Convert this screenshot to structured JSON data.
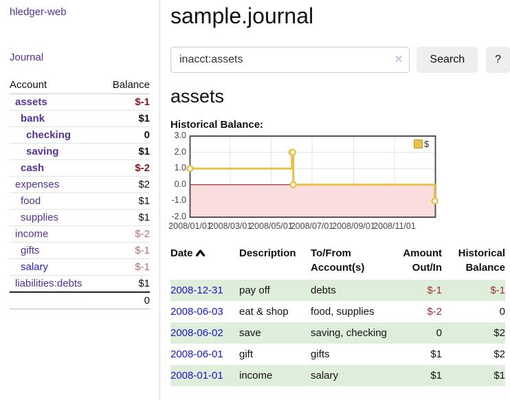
{
  "sidebar": {
    "brand": "hledger-web",
    "journal_label": "Journal",
    "accounts_table": {
      "account_header": "Account",
      "balance_header": "Balance",
      "rows": [
        {
          "name": "assets",
          "depth": 1,
          "bold": true,
          "link": "purple",
          "balance": "$-1",
          "tone": "neg-strong"
        },
        {
          "name": "bank",
          "depth": 2,
          "bold": true,
          "link": "purple",
          "balance": "$1",
          "tone": "normal"
        },
        {
          "name": "checking",
          "depth": 3,
          "bold": true,
          "link": "purple",
          "balance": "0",
          "tone": "normal"
        },
        {
          "name": "saving",
          "depth": 3,
          "bold": true,
          "link": "purple",
          "balance": "$1",
          "tone": "normal"
        },
        {
          "name": "cash",
          "depth": 2,
          "bold": true,
          "link": "purple",
          "balance": "$-2",
          "tone": "neg-strong"
        },
        {
          "name": "expenses",
          "depth": 1,
          "bold": false,
          "link": "purple",
          "balance": "$2",
          "tone": "normal"
        },
        {
          "name": "food",
          "depth": 2,
          "bold": false,
          "link": "purple",
          "balance": "$1",
          "tone": "normal"
        },
        {
          "name": "supplies",
          "depth": 2,
          "bold": false,
          "link": "purple",
          "balance": "$1",
          "tone": "normal"
        },
        {
          "name": "income",
          "depth": 1,
          "bold": false,
          "link": "purple",
          "balance": "$-2",
          "tone": "neg-soft"
        },
        {
          "name": "gifts",
          "depth": 2,
          "bold": false,
          "link": "purple",
          "balance": "$-1",
          "tone": "neg-soft"
        },
        {
          "name": "salary",
          "depth": 2,
          "bold": false,
          "link": "blue",
          "balance": "$-1",
          "tone": "neg-soft"
        },
        {
          "name": "liabilities:debts",
          "depth": 1,
          "bold": false,
          "link": "purple",
          "balance": "$1",
          "tone": "normal"
        }
      ],
      "total": "0"
    }
  },
  "header": {
    "title": "sample.journal"
  },
  "search": {
    "value": "inacct:assets",
    "placeholder": "",
    "button_label": "Search",
    "help_label": "?"
  },
  "icons": {
    "clear_search": "✕",
    "sort_date": "chevron-up",
    "legend_swatch": "gold-square"
  },
  "account_page": {
    "heading": "assets"
  },
  "chart_data": {
    "type": "line",
    "title": "Historical Balance:",
    "step": true,
    "series": [
      {
        "name": "$",
        "color": "#e9c04c",
        "points": [
          [
            "2008-01-01",
            1
          ],
          [
            "2008-06-01",
            2
          ],
          [
            "2008-06-02",
            2
          ],
          [
            "2008-06-03",
            0
          ],
          [
            "2008-12-31",
            -1
          ]
        ]
      }
    ],
    "xlim": [
      "2008-01-01",
      "2009-01-01"
    ],
    "ylim": [
      -2,
      3
    ],
    "yticks": [
      3.0,
      2.0,
      1.0,
      0.0,
      -1.0,
      -2.0
    ],
    "xticks": [
      {
        "date": "2008-01-01",
        "label": "2008/01/01"
      },
      {
        "date": "2008-03-01",
        "label": "2008/03/01"
      },
      {
        "date": "2008-05-01",
        "label": "2008/05/01"
      },
      {
        "date": "2008-07-01",
        "label": "2008/07/01"
      },
      {
        "date": "2008-09-01",
        "label": "2008/09/01"
      },
      {
        "date": "2008-11-01",
        "label": "2008/11/01"
      }
    ],
    "legend_position": "top-right",
    "grid": true,
    "grid_color": "#e3e3e3",
    "border_color": "#545454",
    "zero_line_color": "#8b0000",
    "negative_region_fill": "#fbdddd",
    "marker_fill": "#ffffff"
  },
  "register": {
    "headers": [
      "Date",
      "Description",
      "To/From Account(s)",
      "Amount Out/In",
      "Historical Balance"
    ],
    "rows": [
      {
        "date": "2008-12-31",
        "description": "pay off",
        "accounts": "debts",
        "amount": "$-1",
        "amount_negative": true,
        "balance": "$-1",
        "balance_negative": true,
        "shaded": true
      },
      {
        "date": "2008-06-03",
        "description": "eat & shop",
        "accounts": "food, supplies",
        "amount": "$-2",
        "amount_negative": true,
        "balance": "0",
        "balance_negative": false,
        "shaded": false
      },
      {
        "date": "2008-06-02",
        "description": "save",
        "accounts": "saving, checking",
        "amount": "0",
        "amount_negative": false,
        "balance": "$2",
        "balance_negative": false,
        "shaded": true
      },
      {
        "date": "2008-06-01",
        "description": "gift",
        "accounts": "gifts",
        "amount": "$1",
        "amount_negative": false,
        "balance": "$2",
        "balance_negative": false,
        "shaded": false
      },
      {
        "date": "2008-01-01",
        "description": "income",
        "accounts": "salary",
        "amount": "$1",
        "amount_negative": false,
        "balance": "$1",
        "balance_negative": false,
        "shaded": true
      }
    ]
  },
  "colors": {
    "link_purple": "#56309b",
    "link_blue": "#2b21cf",
    "negative_strong": "#8b1414",
    "negative_soft": "#b76c6c",
    "register_negative": "#9e2f2f",
    "row_stripe_green": "#dfeeda",
    "button_gray": "#eeeeee"
  }
}
